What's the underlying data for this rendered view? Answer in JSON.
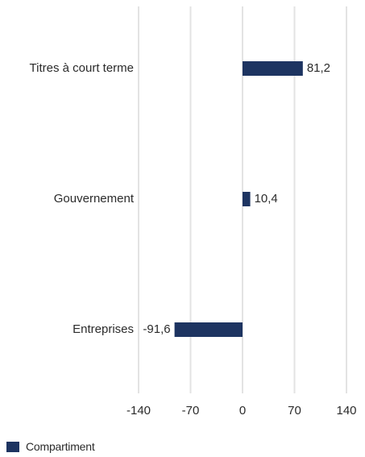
{
  "chart_data": {
    "type": "bar",
    "orientation": "horizontal",
    "categories": [
      "Titres à court terme",
      "Gouvernement",
      "Entreprises"
    ],
    "series": [
      {
        "name": "Compartiment",
        "values": [
          81.2,
          10.4,
          -91.6
        ],
        "value_labels": [
          "81,2",
          "10,4",
          "-91,6"
        ],
        "color": "#1d3461"
      }
    ],
    "xlim": [
      -140,
      140
    ],
    "xticks": [
      -140,
      -70,
      0,
      70,
      140
    ],
    "xtick_labels": [
      "-140",
      "-70",
      "0",
      "70",
      "140"
    ],
    "grid": true,
    "grid_color": "#e3e3e3",
    "legend": "bottom-left"
  }
}
